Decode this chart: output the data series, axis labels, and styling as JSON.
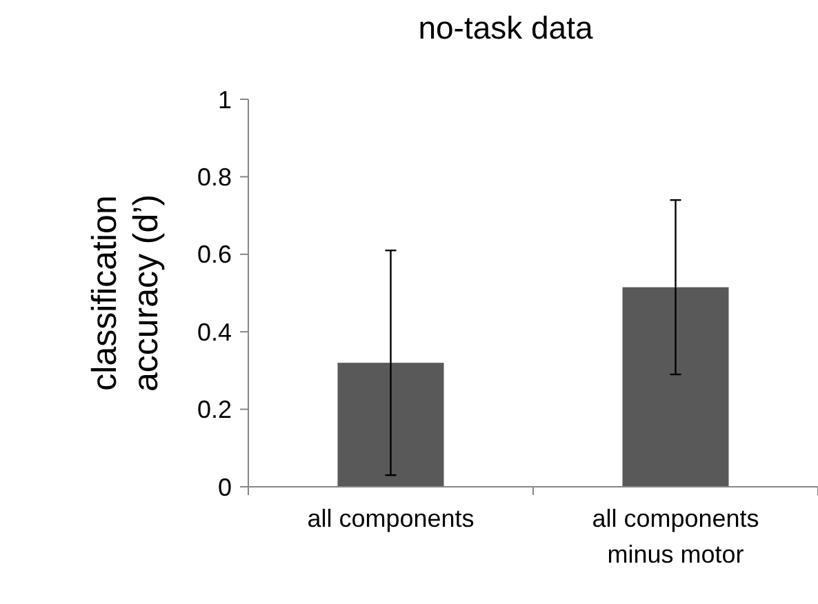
{
  "chart_data": {
    "type": "bar",
    "title": "no-task data",
    "ylabel": "classification accuracy (d’)",
    "categories": [
      "all components",
      "all components minus motor"
    ],
    "values": [
      0.32,
      0.515
    ],
    "errors": [
      0.29,
      0.225
    ],
    "color": "#595959",
    "ylim": [
      0,
      1
    ],
    "yticks": [
      0,
      0.2,
      0.4,
      0.6,
      0.8,
      1
    ],
    "grid": false
  }
}
